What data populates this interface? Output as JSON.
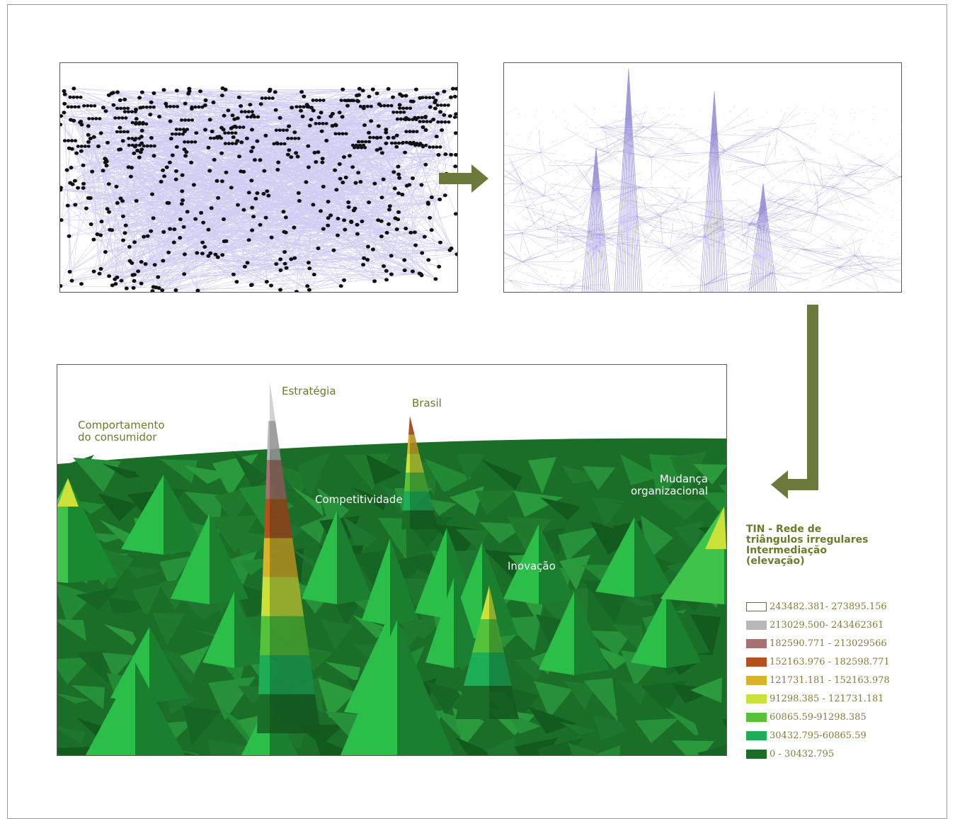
{
  "labels": {
    "estrategia": "Estratégia",
    "brasil": "Brasil",
    "comportamento_line1": "Comportamento",
    "comportamento_line2": "do consumidor",
    "competitividade": "Competitividade",
    "mudanca_line1": "Mudança",
    "mudanca_line2": "organizacional",
    "inovacao": "Inovação"
  },
  "legend": {
    "title_lines": [
      "TIN - Rede de",
      "triângulos irregulares",
      "Intermediação",
      "(elevação)"
    ],
    "items": [
      {
        "range": "243482.381- 273895.156",
        "color": "#ffffff"
      },
      {
        "range": "213029.500- 243462361",
        "color": "#b8b8b8"
      },
      {
        "range": "182590.771 - 213029566",
        "color": "#a87070"
      },
      {
        "range": "152163.976 - 182598.771",
        "color": "#b2521e"
      },
      {
        "range": "121731.181 - 152163.978",
        "color": "#dcb22a"
      },
      {
        "range": "91298.385 - 121731.181",
        "color": "#cce03a"
      },
      {
        "range": "60865.59-91298.385",
        "color": "#56c23a"
      },
      {
        "range": "30432.795-60865.59",
        "color": "#1fae58"
      },
      {
        "range": "0 - 30432.795",
        "color": "#1a6e28"
      }
    ]
  },
  "colors": {
    "accent": "#6b7b2a",
    "arrow": "#6b7a3a",
    "network_edge": "#a9a2e8",
    "node": "#111111",
    "terrain_base": "#1a6e28"
  }
}
